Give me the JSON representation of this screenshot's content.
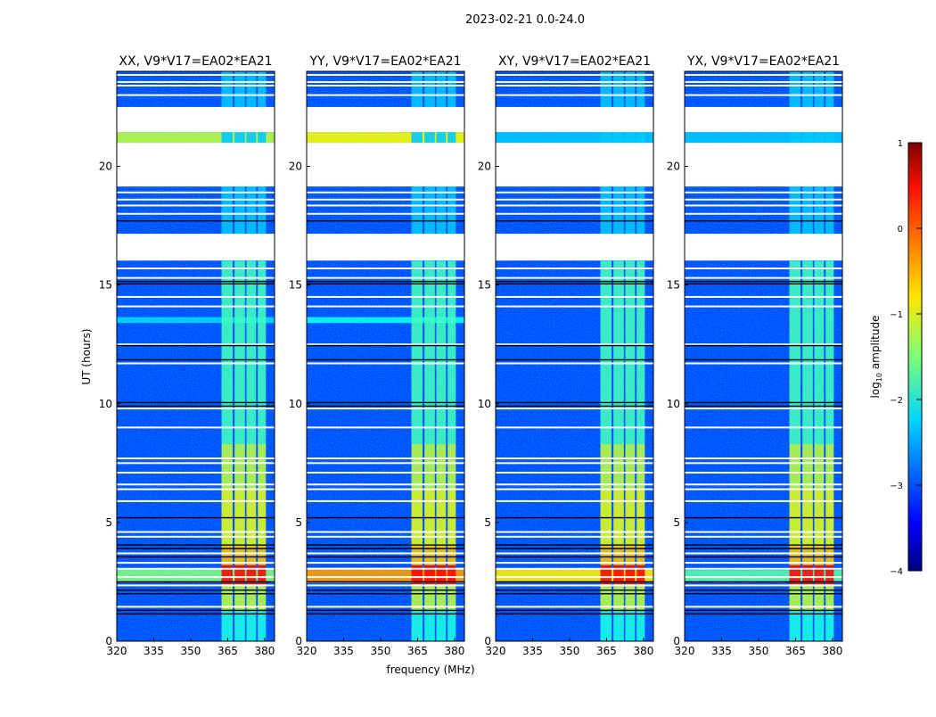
{
  "chart_data": {
    "type": "heatmap",
    "suptitle": "2023-02-21 0.0-24.0",
    "xlabel": "frequency (MHz)",
    "ylabel": "UT (hours)",
    "xlim": [
      320,
      384
    ],
    "ylim": [
      0,
      24
    ],
    "xticks": [
      320,
      335,
      350,
      365,
      380
    ],
    "yticks": [
      0,
      5,
      10,
      15,
      20
    ],
    "background_log_amp": -3.0,
    "colorbar": {
      "label_prefix": "log",
      "label_sub": "10",
      "label_suffix": " amplitude",
      "range": [
        -4,
        1
      ],
      "ticks": [
        1,
        0,
        -1,
        -2,
        -3,
        -4
      ],
      "tick_labels": [
        "1",
        "0",
        "−1",
        "−2",
        "−3",
        "−4"
      ],
      "colormap": "jet"
    },
    "flagged_hours": [
      [
        21.44,
        22.5
      ],
      [
        19.15,
        20.99
      ],
      [
        16.03,
        17.16
      ]
    ],
    "white_stripes_hours": [
      1.45,
      2.35,
      2.7,
      3.05,
      3.3,
      3.7,
      4.4,
      4.6,
      5.9,
      6.4,
      6.6,
      7.1,
      7.5,
      7.7,
      9.0,
      9.8,
      11.7,
      12.5,
      14.1,
      14.5,
      15.3,
      15.7,
      18.0,
      18.35,
      18.6,
      18.9,
      23.0,
      23.4,
      23.55,
      23.85
    ],
    "black_lines_hours": [
      1.15,
      1.3,
      2.0,
      2.15,
      2.5,
      3.55,
      3.9,
      4.05,
      5.2,
      9.9,
      10.05,
      11.85,
      12.45,
      15.05,
      15.15,
      17.7
    ],
    "rfi_channels_mhz": [
      [
        362.5,
        367
      ],
      [
        367.8,
        372
      ],
      [
        372.6,
        376.5
      ],
      [
        377.2,
        380.5
      ]
    ],
    "rfi_levels": [
      {
        "hours": [
          0,
          1.3
        ],
        "log_amp": -2.0
      },
      {
        "hours": [
          1.3,
          2.4
        ],
        "log_amp": -1.2
      },
      {
        "hours": [
          2.4,
          3.2
        ],
        "log_amp": 0.35
      },
      {
        "hours": [
          3.2,
          4.0
        ],
        "log_amp": -0.6
      },
      {
        "hours": [
          4.0,
          6.4
        ],
        "log_amp": -1.0
      },
      {
        "hours": [
          6.4,
          8.3
        ],
        "log_amp": -1.2
      },
      {
        "hours": [
          8.3,
          16.0
        ],
        "log_amp": -1.8
      },
      {
        "hours": [
          16.0,
          24.0
        ],
        "log_amp": -2.4
      }
    ],
    "panels": [
      {
        "title": "XX, V9*V17=EA02*EA21",
        "bands": [
          {
            "hours": [
              2.5,
              3.05
            ],
            "log_amp": -1.5
          },
          {
            "hours": [
              20.99,
              21.44
            ],
            "log_amp": -1.2
          },
          {
            "hours": [
              13.4,
              13.65
            ],
            "log_amp": -2.3
          }
        ]
      },
      {
        "title": "YY, V9*V17=EA02*EA21",
        "bands": [
          {
            "hours": [
              2.45,
              3.1
            ],
            "log_amp": -0.4
          },
          {
            "hours": [
              20.99,
              21.44
            ],
            "log_amp": -0.9
          },
          {
            "hours": [
              13.4,
              13.65
            ],
            "log_amp": -2.1
          }
        ]
      },
      {
        "title": "XY, V9*V17=EA02*EA21",
        "bands": [
          {
            "hours": [
              2.5,
              3.05
            ],
            "log_amp": -0.8
          },
          {
            "hours": [
              20.99,
              21.44
            ],
            "log_amp": -2.4
          }
        ]
      },
      {
        "title": "YX, V9*V17=EA02*EA21",
        "bands": [
          {
            "hours": [
              2.5,
              3.0
            ],
            "log_amp": -1.7
          },
          {
            "hours": [
              20.99,
              21.44
            ],
            "log_amp": -2.4
          }
        ]
      }
    ]
  }
}
